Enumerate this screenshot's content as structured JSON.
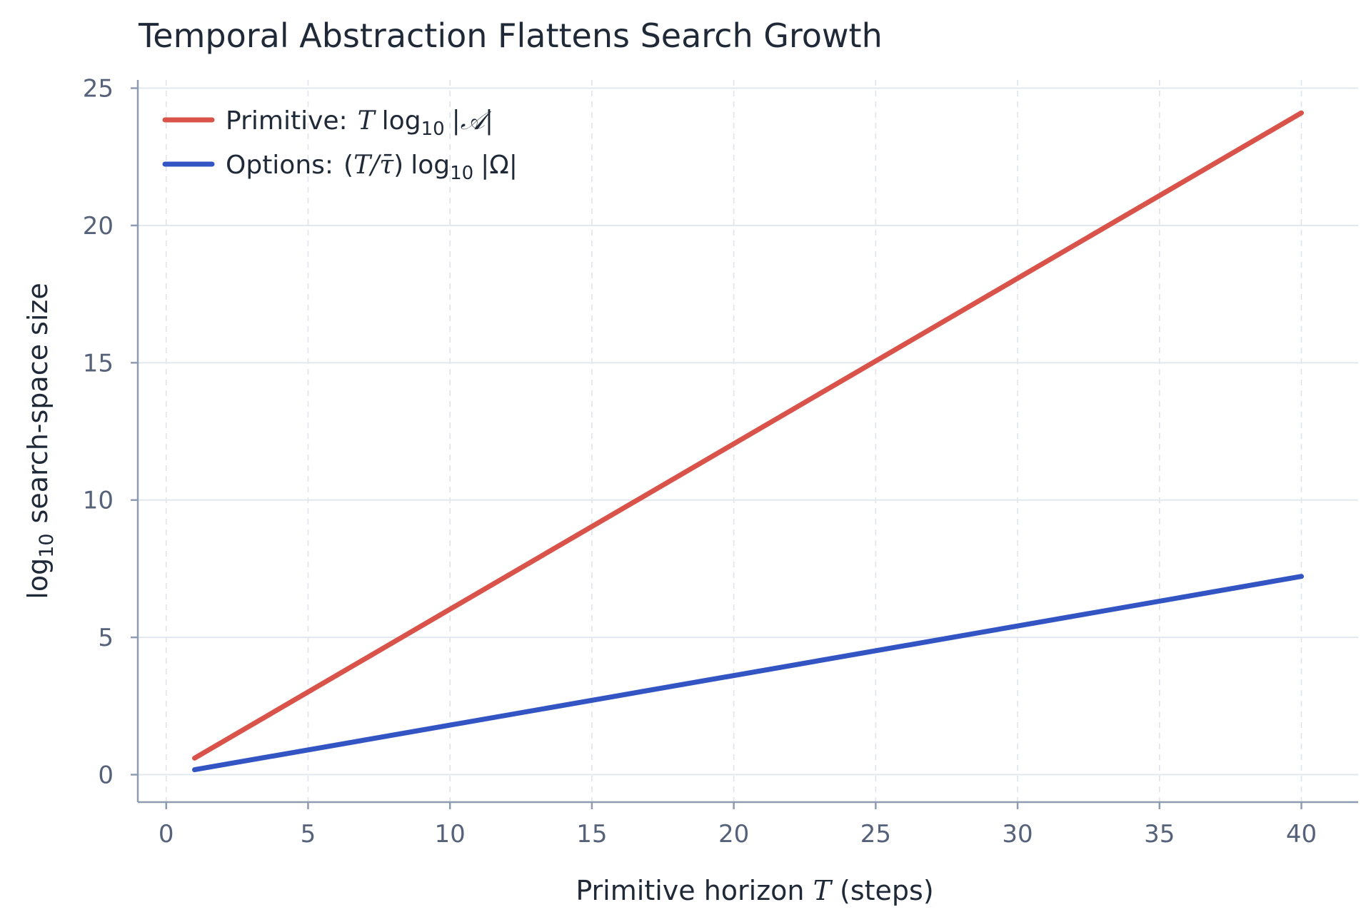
{
  "chart_data": {
    "type": "line",
    "title": "Temporal Abstraction Flattens Search Growth",
    "xlabel": {
      "text": "Primitive horizon ",
      "var": "T",
      "suffix": " (steps)"
    },
    "ylabel": {
      "fn": "log",
      "sub": "10",
      "text": "search-space size"
    },
    "xlim": [
      -1,
      42
    ],
    "ylim": [
      -1,
      25.3
    ],
    "xticks": [
      0,
      5,
      10,
      15,
      20,
      25,
      30,
      35,
      40
    ],
    "yticks": [
      0,
      5,
      10,
      15,
      20,
      25
    ],
    "grid": true,
    "legend_position": "top-left",
    "series": [
      {
        "key": "primitive",
        "name": "Primitive:",
        "color": "#d9534a",
        "x": [
          1,
          40
        ],
        "y": [
          0.6,
          24.1
        ]
      },
      {
        "key": "options",
        "name": "Options:",
        "color": "#3355c4",
        "x": [
          1,
          40
        ],
        "y": [
          0.18,
          7.22
        ]
      }
    ],
    "legend_math": {
      "primitive": {
        "var": "T",
        "fn": "log",
        "sub": "10",
        "arg": "|𝒜|"
      },
      "options": {
        "lead": "(",
        "var": "T/τ̄",
        "close": ")",
        "fn": "log",
        "sub": "10",
        "arg": "|Ω|"
      }
    }
  }
}
